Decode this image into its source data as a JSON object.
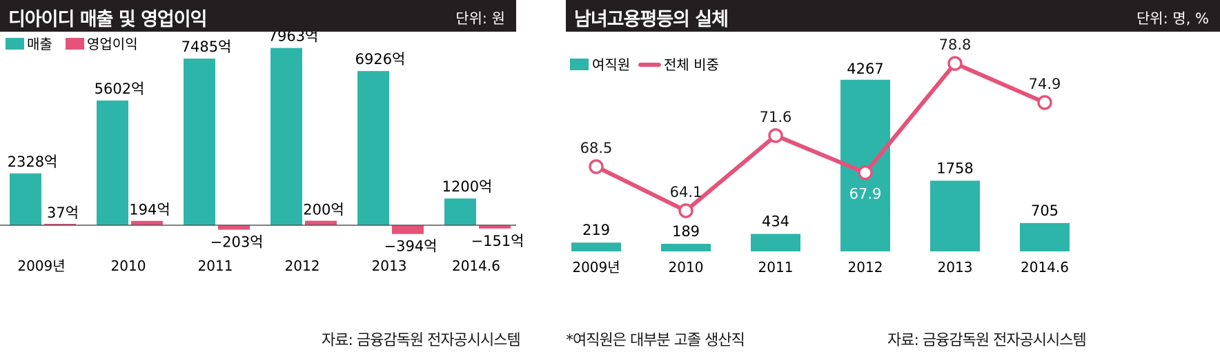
{
  "colors": {
    "teal": "#2eb5aa",
    "pink": "#e5537a",
    "dark": "#231f20"
  },
  "left": {
    "title": "디아이디 매출 및 영업이익",
    "unit": "단위: 원",
    "legend": [
      "매출",
      "영업이익"
    ],
    "source": "자료: 금융감독원 전자공시시스템",
    "chart_data": {
      "type": "bar",
      "title": "디아이디 매출 및 영업이익",
      "categories": [
        "2009년",
        "2010",
        "2011",
        "2012",
        "2013",
        "2014.6"
      ],
      "series": [
        {
          "name": "매출",
          "values": [
            2328,
            5602,
            7485,
            7963,
            6926,
            1200
          ],
          "labels": [
            "2328억",
            "5602억",
            "7485억",
            "7963억",
            "6926억",
            "1200억"
          ]
        },
        {
          "name": "영업이익",
          "values": [
            37,
            194,
            -203,
            200,
            -394,
            -151
          ],
          "labels": [
            "37억",
            "194억",
            "−203억",
            "200억",
            "−394억",
            "−151억"
          ]
        }
      ],
      "legend_position": "top-left"
    }
  },
  "right": {
    "title": "남녀고용평등의 실체",
    "unit": "단위: 명, %",
    "legend": [
      "여직원",
      "전체 비중"
    ],
    "note": "*여직원은 대부분 고졸 생산직",
    "source": "자료: 금융감독원 전자공시시스템",
    "chart_data": {
      "type": "bar",
      "title": "남녀고용평등의 실체",
      "categories": [
        "2009년",
        "2010",
        "2011",
        "2012",
        "2013",
        "2014.6"
      ],
      "series": [
        {
          "name": "여직원",
          "type": "bar",
          "values": [
            219,
            189,
            434,
            4267,
            1758,
            705
          ],
          "labels": [
            "219",
            "189",
            "434",
            "4267",
            "1758",
            "705"
          ]
        },
        {
          "name": "전체 비중",
          "type": "line",
          "values": [
            68.5,
            64.1,
            71.6,
            67.9,
            78.8,
            74.9
          ],
          "labels": [
            "68.5",
            "64.1",
            "71.6",
            "67.9",
            "78.8",
            "74.9"
          ]
        }
      ],
      "legend_position": "top-left"
    }
  }
}
